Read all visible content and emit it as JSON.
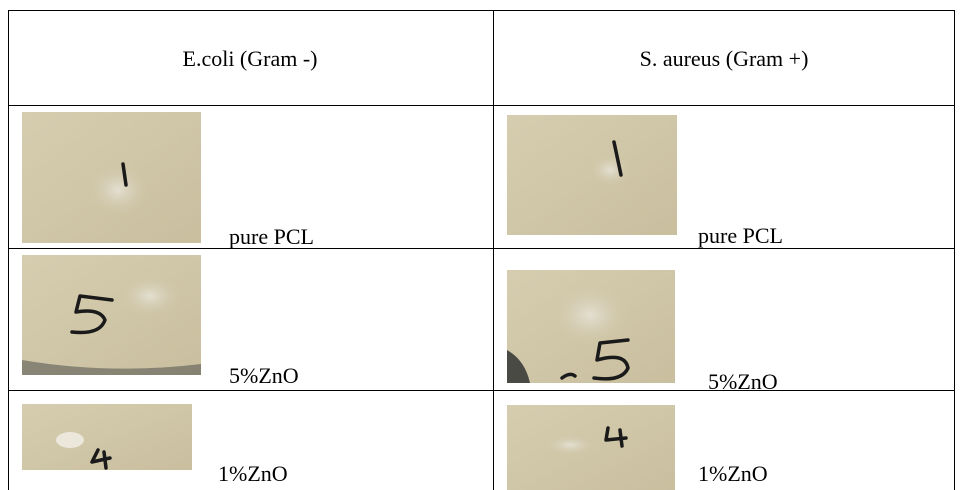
{
  "table": {
    "header": [
      "E.coli (Gram -)",
      "S. aureus (Gram +)"
    ],
    "rows": [
      [
        "pure PCL",
        "pure PCL"
      ],
      [
        "5%ZnO",
        "5%ZnO"
      ],
      [
        "1%ZnO",
        "1%ZnO"
      ]
    ]
  }
}
